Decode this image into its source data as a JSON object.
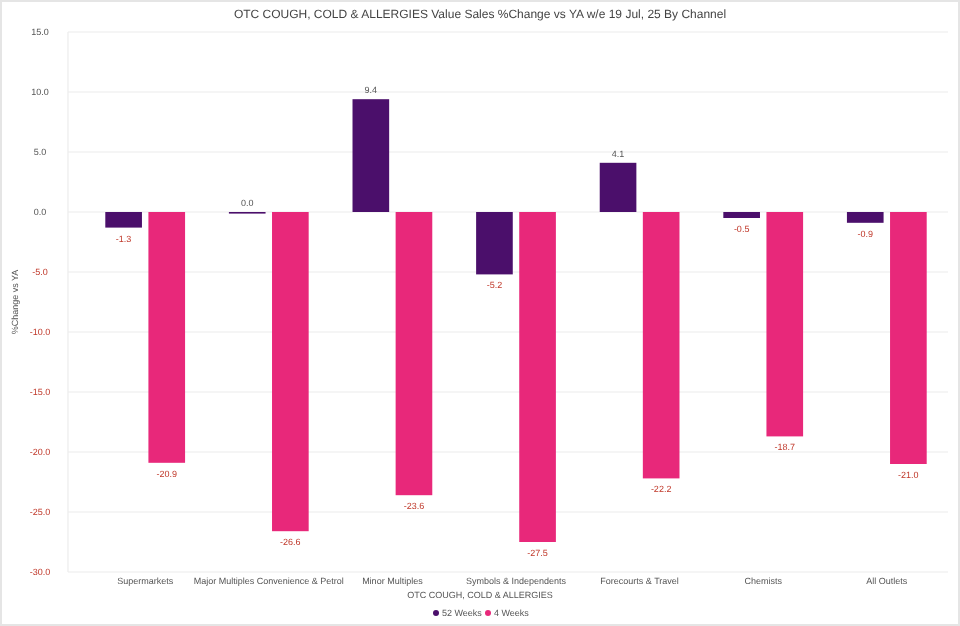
{
  "chart_data": {
    "type": "bar",
    "title": "OTC COUGH, COLD & ALLERGIES Value Sales %Change vs YA w/e 19 Jul, 25 By Channel",
    "xlabel": "OTC COUGH, COLD & ALLERGIES",
    "ylabel": "%Change vs YA",
    "categories": [
      "Supermarkets",
      "Major Multiples Convenience & Petrol",
      "Minor Multiples",
      "Symbols & Independents",
      "Forecourts & Travel",
      "Chemists",
      "All Outlets"
    ],
    "series": [
      {
        "name": "52 Weeks",
        "color": "#4b0f6b",
        "values": [
          -1.3,
          0.0,
          9.4,
          -5.2,
          4.1,
          -0.5,
          -0.9
        ],
        "value_labels": [
          "-1.3",
          "0.0",
          "9.4",
          "-5.2",
          "4.1",
          "-0.5",
          "-0.9"
        ]
      },
      {
        "name": "4 Weeks",
        "color": "#e8287a",
        "values": [
          -20.9,
          -26.6,
          -23.6,
          -27.5,
          -22.2,
          -18.7,
          -21.0
        ],
        "value_labels": [
          "-20.9",
          "-26.6",
          "-23.6",
          "-27.5",
          "-22.2",
          "-18.7",
          "-21.0"
        ]
      }
    ],
    "ylim": [
      -30,
      15
    ],
    "yticks": [
      {
        "value": 15,
        "label": "15.0"
      },
      {
        "value": 10,
        "label": "10.0"
      },
      {
        "value": 5,
        "label": "5.0"
      },
      {
        "value": 0,
        "label": "0.0"
      },
      {
        "value": -5,
        "label": "-5.0"
      },
      {
        "value": -10,
        "label": "-10.0"
      },
      {
        "value": -15,
        "label": "-15.0"
      },
      {
        "value": -20,
        "label": "-20.0"
      },
      {
        "value": -25,
        "label": "-25.0"
      },
      {
        "value": -30,
        "label": "-30.0"
      }
    ],
    "grid": "y",
    "legend": "bottom"
  }
}
